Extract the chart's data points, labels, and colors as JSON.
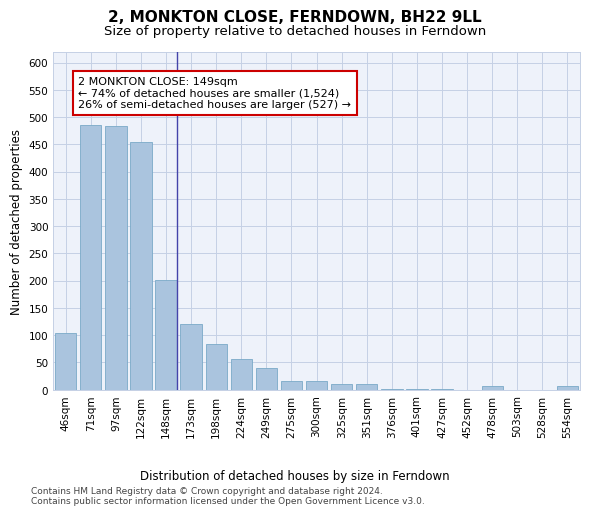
{
  "title": "2, MONKTON CLOSE, FERNDOWN, BH22 9LL",
  "subtitle": "Size of property relative to detached houses in Ferndown",
  "xlabel_bottom": "Distribution of detached houses by size in Ferndown",
  "ylabel": "Number of detached properties",
  "categories": [
    "46sqm",
    "71sqm",
    "97sqm",
    "122sqm",
    "148sqm",
    "173sqm",
    "198sqm",
    "224sqm",
    "249sqm",
    "275sqm",
    "300sqm",
    "325sqm",
    "351sqm",
    "376sqm",
    "401sqm",
    "427sqm",
    "452sqm",
    "478sqm",
    "503sqm",
    "528sqm",
    "554sqm"
  ],
  "values": [
    104,
    486,
    484,
    454,
    201,
    120,
    83,
    56,
    40,
    15,
    15,
    10,
    10,
    1,
    1,
    1,
    0,
    6,
    0,
    0,
    6
  ],
  "bar_color": "#aac4de",
  "bar_edge_color": "#7aaac8",
  "marker_index": 4,
  "annotation_line1": "2 MONKTON CLOSE: 149sqm",
  "annotation_line2": "← 74% of detached houses are smaller (1,524)",
  "annotation_line3": "26% of semi-detached houses are larger (527) →",
  "annotation_box_color": "#ffffff",
  "annotation_box_edge": "#cc0000",
  "vline_color": "#4444aa",
  "ylim": [
    0,
    620
  ],
  "yticks": [
    0,
    50,
    100,
    150,
    200,
    250,
    300,
    350,
    400,
    450,
    500,
    550,
    600
  ],
  "bg_color": "#eef2fa",
  "footer": "Contains HM Land Registry data © Crown copyright and database right 2024.\nContains public sector information licensed under the Open Government Licence v3.0.",
  "title_fontsize": 11,
  "subtitle_fontsize": 9.5,
  "axis_label_fontsize": 8.5,
  "tick_fontsize": 7.5,
  "annotation_fontsize": 8,
  "footer_fontsize": 6.5
}
